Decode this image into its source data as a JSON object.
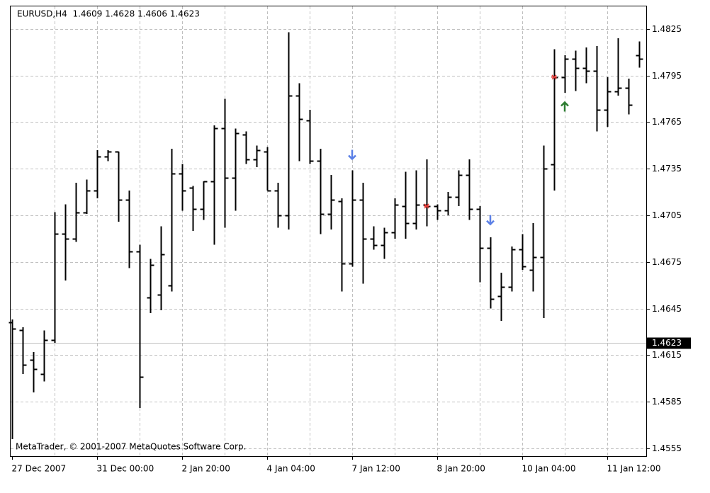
{
  "chart_data": {
    "type": "ohlc",
    "title": "EURUSD,H4  1.4609 1.4628 1.4606 1.4623",
    "watermark": "MetaTrader, © 2001-2007 MetaQuotes Software Corp.",
    "categories": [
      "27 Dec 2007",
      null,
      null,
      null,
      null,
      null,
      null,
      null,
      "31 Dec 00:00",
      null,
      null,
      null,
      null,
      null,
      null,
      null,
      "2 Jan 20:00",
      null,
      null,
      null,
      null,
      null,
      null,
      null,
      "4 Jan 04:00",
      null,
      null,
      null,
      null,
      null,
      null,
      null,
      "7 Jan 12:00",
      null,
      null,
      null,
      null,
      null,
      null,
      null,
      "8 Jan 20:00",
      null,
      null,
      null,
      null,
      null,
      null,
      null,
      "10 Jan 04:00",
      null,
      null,
      null,
      null,
      null,
      null,
      null,
      "11 Jan 12:00",
      null,
      null,
      null
    ],
    "open": [
      1.4636,
      1.4631,
      1.4612,
      1.4603,
      1.4625,
      1.4693,
      1.469,
      1.4707,
      1.4721,
      1.4743,
      1.4746,
      1.4715,
      1.4682,
      1.4652,
      1.4654,
      1.466,
      1.4732,
      1.4723,
      1.4709,
      1.4727,
      1.4761,
      1.4729,
      1.4757,
      1.4741,
      1.4746,
      1.4721,
      1.4705,
      1.4782,
      1.4766,
      1.474,
      1.4706,
      1.4714,
      1.4674,
      1.4715,
      1.469,
      1.4686,
      1.4694,
      1.4711,
      1.47,
      1.4712,
      1.4711,
      1.4708,
      1.4717,
      1.4731,
      1.4709,
      1.4684,
      1.4653,
      1.4659,
      1.4683,
      1.467,
      1.4678,
      1.4738,
      1.4794,
      1.4806,
      1.48,
      1.4798,
      1.4773,
      1.4785,
      1.4787,
      1.4808
    ],
    "high": [
      1.4638,
      1.4633,
      1.4617,
      1.4631,
      1.4707,
      1.4712,
      1.4726,
      1.4728,
      1.4747,
      1.4747,
      1.4746,
      1.4721,
      1.4686,
      1.4677,
      1.4698,
      1.4748,
      1.4738,
      1.4724,
      1.4727,
      1.4763,
      1.478,
      1.4761,
      1.4759,
      1.475,
      1.4749,
      1.4726,
      1.4823,
      1.479,
      1.4773,
      1.4748,
      1.4731,
      1.4716,
      1.4734,
      1.4726,
      1.4698,
      1.4697,
      1.4716,
      1.4733,
      1.4734,
      1.4741,
      1.4712,
      1.472,
      1.4734,
      1.4741,
      1.4711,
      1.4691,
      1.4668,
      1.4685,
      1.4693,
      1.47,
      1.475,
      1.4812,
      1.4808,
      1.4811,
      1.4813,
      1.4814,
      1.4794,
      1.4819,
      1.4793,
      1.4817
    ],
    "low": [
      1.4561,
      1.4603,
      1.4591,
      1.4598,
      1.4623,
      1.4663,
      1.4688,
      1.4706,
      1.4716,
      1.474,
      1.4701,
      1.4671,
      1.4581,
      1.4642,
      1.4644,
      1.4656,
      1.4708,
      1.4695,
      1.4702,
      1.4686,
      1.4697,
      1.4708,
      1.4738,
      1.4736,
      1.4721,
      1.4697,
      1.4696,
      1.474,
      1.4738,
      1.4693,
      1.4696,
      1.4656,
      1.4672,
      1.4661,
      1.4683,
      1.4677,
      1.469,
      1.469,
      1.4696,
      1.4698,
      1.4702,
      1.4705,
      1.4711,
      1.4702,
      1.4662,
      1.4645,
      1.4637,
      1.4656,
      1.467,
      1.4656,
      1.4639,
      1.4721,
      1.4784,
      1.4785,
      1.479,
      1.4759,
      1.4762,
      1.4782,
      1.477,
      1.48
    ],
    "close": [
      1.4632,
      1.4609,
      1.4606,
      1.4625,
      1.4693,
      1.469,
      1.4707,
      1.4721,
      1.4743,
      1.4746,
      1.4715,
      1.4682,
      1.4601,
      1.4673,
      1.468,
      1.4732,
      1.4721,
      1.4709,
      1.4727,
      1.4761,
      1.4729,
      1.4758,
      1.4741,
      1.4747,
      1.4721,
      1.4705,
      1.4782,
      1.4767,
      1.474,
      1.4706,
      1.4715,
      1.4674,
      1.4715,
      1.469,
      1.4686,
      1.4694,
      1.4712,
      1.47,
      1.4712,
      1.4711,
      1.4708,
      1.4717,
      1.4731,
      1.4709,
      1.4684,
      1.4651,
      1.4659,
      1.4683,
      1.4672,
      1.4678,
      1.4735,
      1.4794,
      1.4806,
      1.48,
      1.4798,
      1.4773,
      1.4785,
      1.4787,
      1.4776,
      1.4806
    ],
    "color": "#000000",
    "down_arrows": {
      "color": "#5a7fe6",
      "values": [
        null,
        null,
        null,
        null,
        null,
        null,
        null,
        null,
        null,
        null,
        null,
        null,
        null,
        null,
        null,
        null,
        null,
        null,
        null,
        null,
        null,
        null,
        null,
        null,
        null,
        null,
        null,
        null,
        null,
        null,
        null,
        null,
        1.4744,
        null,
        null,
        null,
        null,
        null,
        null,
        null,
        null,
        null,
        null,
        null,
        null,
        1.4702,
        null,
        null,
        null,
        null,
        null,
        null,
        null,
        null,
        null,
        null,
        null,
        null,
        null,
        null
      ]
    },
    "up_arrows": {
      "color": "#2e7d32",
      "values": [
        null,
        null,
        null,
        null,
        null,
        null,
        null,
        null,
        null,
        null,
        null,
        null,
        null,
        null,
        null,
        null,
        null,
        null,
        null,
        null,
        null,
        null,
        null,
        null,
        null,
        null,
        null,
        null,
        null,
        null,
        null,
        null,
        null,
        null,
        null,
        null,
        null,
        null,
        null,
        null,
        null,
        null,
        null,
        null,
        null,
        null,
        null,
        null,
        null,
        null,
        null,
        null,
        1.4775,
        null,
        null,
        null,
        null,
        null,
        null,
        null
      ]
    },
    "stars": {
      "color": "#e53935",
      "values": [
        null,
        null,
        null,
        null,
        null,
        null,
        null,
        null,
        null,
        null,
        null,
        null,
        null,
        null,
        null,
        null,
        null,
        null,
        null,
        null,
        null,
        null,
        null,
        null,
        null,
        null,
        null,
        null,
        null,
        null,
        null,
        null,
        null,
        null,
        null,
        null,
        null,
        null,
        null,
        1.4711,
        null,
        null,
        null,
        null,
        null,
        null,
        null,
        null,
        null,
        null,
        null,
        1.4794,
        null,
        null,
        null,
        null,
        null,
        null,
        null,
        null
      ]
    },
    "current_price": 1.4623,
    "ylim": [
      1.455,
      1.484
    ],
    "yticks": [
      1.4825,
      1.4795,
      1.4765,
      1.4735,
      1.4705,
      1.4675,
      1.4645,
      1.4615,
      1.4585,
      1.4555
    ],
    "grid": true
  }
}
